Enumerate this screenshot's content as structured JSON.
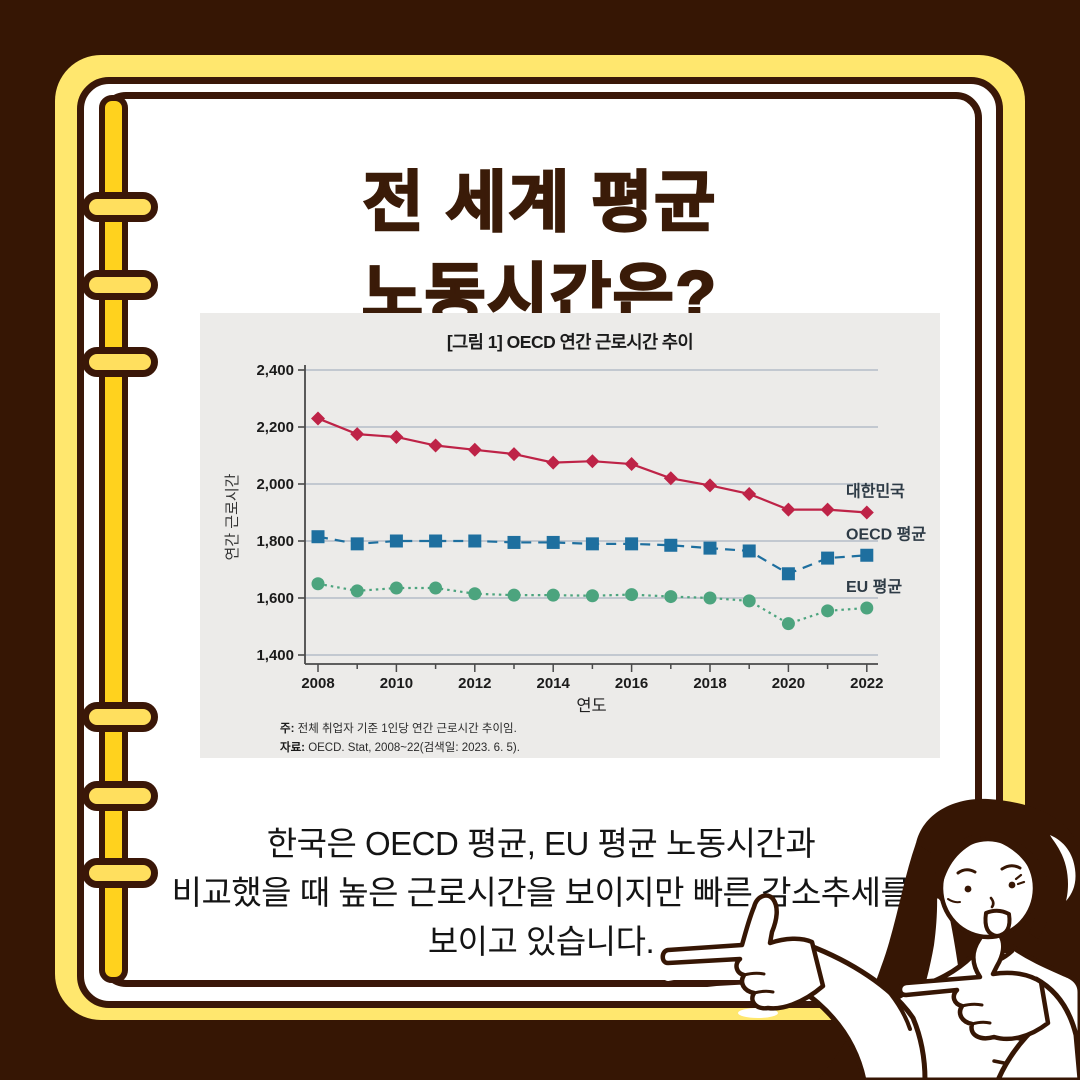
{
  "theme": {
    "bg": "#361604",
    "frame_yellow": "#FFE76E",
    "spine_yellow": "#FFD21E",
    "ring_yellow": "#FFDF5E",
    "outline": "#3A1708",
    "page_white": "#FFFFFF",
    "title_brown": "#3A1B08",
    "panel_gray": "#ECEBE9",
    "grid": "#B3BDC7",
    "axis": "#4A4A4A",
    "text_dark": "#1B1B1B",
    "label_navy": "#2E3B46",
    "korea_red": "#BE2347",
    "oecd_blue": "#1E6F9F",
    "eu_green": "#4CA47E",
    "caption_black": "#141414"
  },
  "title": {
    "line1": "전 세계 평균",
    "line2": "노동시간은?"
  },
  "chart_panel": {
    "title": "[그림 1] OECD 연간 근로시간 추이",
    "note_label": "주:",
    "note_text": " 전체 취업자 기준 1인당 연간 근로시간 추이임.",
    "source_label": "자료:",
    "source_text": " OECD. Stat, 2008~22(검색일: 2023. 6. 5)."
  },
  "chart_data": {
    "type": "line",
    "title": "[그림 1] OECD 연간 근로시간 추이",
    "xlabel": "연도",
    "ylabel": "연간 근로시간",
    "ylim": [
      1400,
      2400
    ],
    "ytick_step": 200,
    "grid": true,
    "legend_position": "right-inline",
    "x": [
      2008,
      2009,
      2010,
      2011,
      2012,
      2013,
      2014,
      2015,
      2016,
      2017,
      2018,
      2019,
      2020,
      2021,
      2022
    ],
    "xticks_labeled": [
      2008,
      2010,
      2012,
      2014,
      2016,
      2018,
      2020,
      2022
    ],
    "series": [
      {
        "name": "대한민국",
        "color": "#BE2347",
        "marker": "diamond",
        "line": "solid",
        "values": [
          2230,
          2175,
          2165,
          2135,
          2120,
          2105,
          2075,
          2080,
          2070,
          2020,
          1995,
          1965,
          1910,
          1910,
          1900
        ]
      },
      {
        "name": "OECD 평균",
        "color": "#1E6F9F",
        "marker": "square",
        "line": "dashed",
        "values": [
          1815,
          1790,
          1800,
          1800,
          1800,
          1795,
          1795,
          1790,
          1790,
          1785,
          1775,
          1765,
          1685,
          1740,
          1750
        ]
      },
      {
        "name": "EU 평균",
        "color": "#4CA47E",
        "marker": "circle",
        "line": "dotted",
        "values": [
          1650,
          1625,
          1635,
          1635,
          1615,
          1610,
          1610,
          1608,
          1612,
          1605,
          1600,
          1590,
          1510,
          1555,
          1565
        ]
      }
    ]
  },
  "caption": {
    "lines": [
      "한국은 OECD 평균, EU 평균 노동시간과",
      "비교했을 때 높은 근로시간을 보이지만 빠른 감소추세를",
      "보이고 있습니다."
    ]
  }
}
